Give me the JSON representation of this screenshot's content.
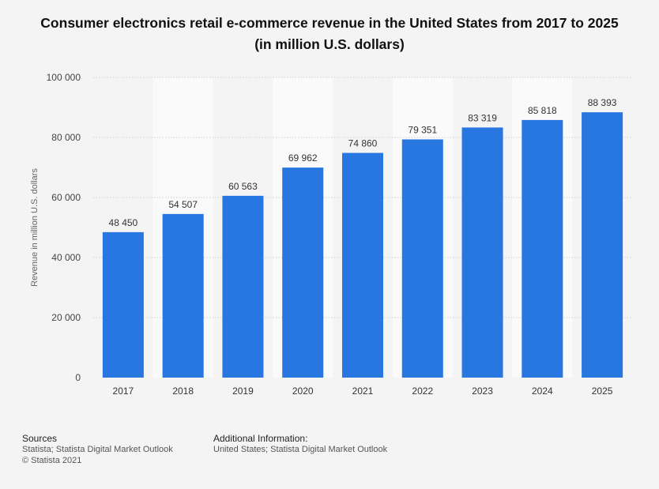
{
  "title": "Consumer electronics retail e-commerce revenue in the United States from 2017 to 2025 (in million U.S. dollars)",
  "footer": {
    "sources_heading": "Sources",
    "sources_text": "Statista; Statista Digital Market Outlook",
    "copyright": "© Statista 2021",
    "additional_heading": "Additional Information:",
    "additional_text": "United States; Statista Digital Market Outlook"
  },
  "colors": {
    "bar": "#2877e0",
    "background": "#f4f4f4",
    "band": "#fafafa",
    "grid": "#cfcfcf"
  },
  "chart_data": {
    "type": "bar",
    "title": "Consumer electronics retail e-commerce revenue in the United States from 2017 to 2025 (in million U.S. dollars)",
    "xlabel": "",
    "ylabel": "Revenue in million U.S. dollars",
    "categories": [
      "2017",
      "2018",
      "2019",
      "2020",
      "2021",
      "2022",
      "2023",
      "2024",
      "2025"
    ],
    "values": [
      48450,
      54507,
      60563,
      69962,
      74860,
      79351,
      83319,
      85818,
      88393
    ],
    "value_labels": [
      "48 450",
      "54 507",
      "60 563",
      "69 962",
      "74 860",
      "79 351",
      "83 319",
      "85 818",
      "88 393"
    ],
    "ylim": [
      0,
      100000
    ],
    "yticks": [
      0,
      20000,
      40000,
      60000,
      80000,
      100000
    ],
    "ytick_labels": [
      "0",
      "20 000",
      "40 000",
      "60 000",
      "80 000",
      "100 000"
    ],
    "grid": true,
    "legend": "none"
  }
}
